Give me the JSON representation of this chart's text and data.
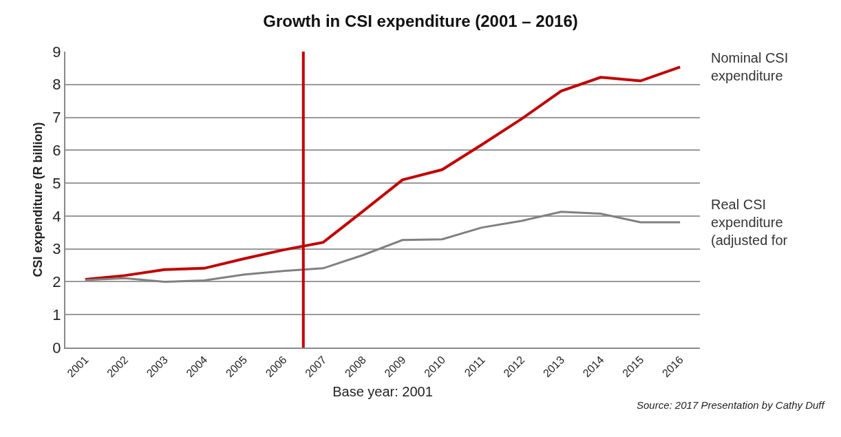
{
  "chart_data": {
    "type": "line",
    "title": "Growth in CSI expenditure (2001 – 2016)",
    "xlabel": "Base year: 2001",
    "ylabel": "CSI expenditure (R billion)",
    "x": [
      2001,
      2002,
      2003,
      2004,
      2005,
      2006,
      2007,
      2008,
      2009,
      2010,
      2011,
      2012,
      2013,
      2014,
      2015,
      2016
    ],
    "xlim": [
      2000.5,
      2016.5
    ],
    "xticks": [
      2001,
      2002,
      2003,
      2004,
      2005,
      2006,
      2007,
      2008,
      2009,
      2010,
      2011,
      2012,
      2013,
      2014,
      2015,
      2016
    ],
    "ylim": [
      0,
      9
    ],
    "yticks": [
      0,
      1,
      2,
      3,
      4,
      5,
      6,
      7,
      8,
      9
    ],
    "grid": "y",
    "legend": false,
    "series": [
      {
        "name": "Nominal CSI expenditure",
        "color": "#c00000",
        "values": [
          2.07,
          2.19,
          2.37,
          2.41,
          2.7,
          2.97,
          3.2,
          4.14,
          5.1,
          5.41,
          6.17,
          6.95,
          7.8,
          8.22,
          8.11,
          8.53
        ]
      },
      {
        "name": "Real CSI expenditure (adjusted for",
        "color": "#808080",
        "values": [
          2.05,
          2.11,
          2.0,
          2.04,
          2.22,
          2.33,
          2.41,
          2.81,
          3.27,
          3.29,
          3.65,
          3.85,
          4.13,
          4.07,
          3.81,
          3.81
        ]
      }
    ],
    "ref_lines": [
      {
        "axis": "x",
        "value": 2006.5,
        "color": "#c00000"
      }
    ],
    "annotations": [
      "Source: 2017 Presentation by Cathy Duff"
    ]
  }
}
